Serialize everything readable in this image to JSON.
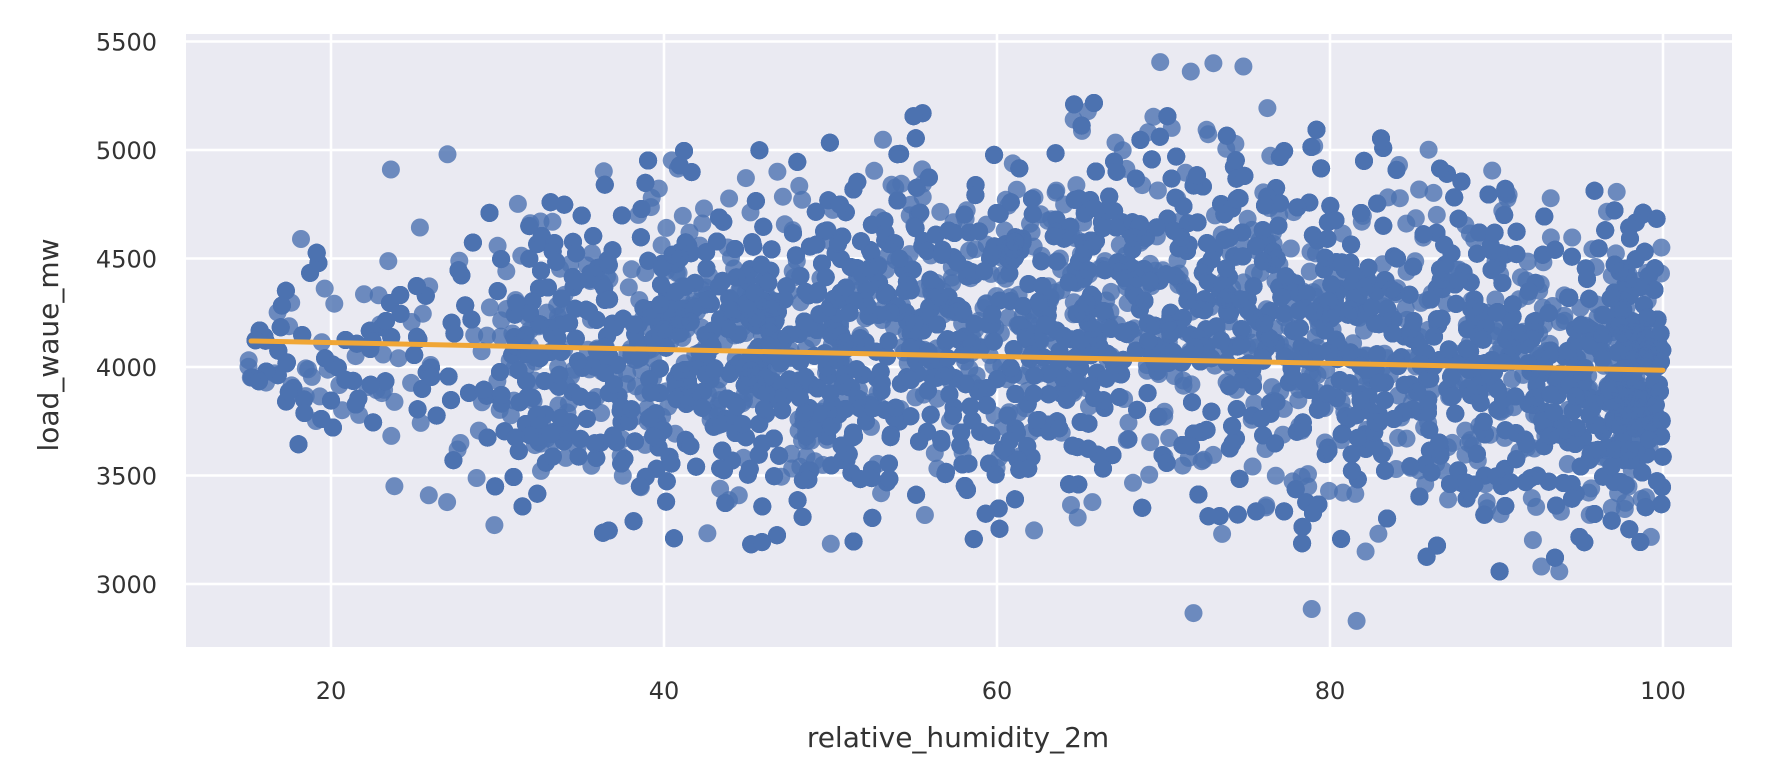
{
  "chart_data": {
    "type": "scatter",
    "title": "",
    "xlabel": "relative_humidity_2m",
    "ylabel": "load_waue_mw",
    "xlim": [
      11.5,
      104.3
    ],
    "ylim": [
      2720,
      5530
    ],
    "xticks": [
      20,
      40,
      60,
      80,
      100
    ],
    "xtick_labels": [
      "20",
      "40",
      "60",
      "80",
      "100"
    ],
    "yticks": [
      3000,
      3500,
      4000,
      4500,
      5000,
      5500
    ],
    "ytick_labels": [
      "3000",
      "3500",
      "4000",
      "4500",
      "5000",
      "5500"
    ],
    "grid": true,
    "legend": null,
    "style": "seaborn darkgrid",
    "series": [
      {
        "name": "observations",
        "kind": "scatter",
        "color": "#4c72b0",
        "alpha": 0.8,
        "marker_radius_px": 9,
        "x_range": [
          15,
          100
        ],
        "y_range": [
          2830,
          5410
        ],
        "approx_n": "many thousands (dense cloud)",
        "envelope": [
          {
            "x": 15,
            "y_low": 3850,
            "y_high": 4300
          },
          {
            "x": 20,
            "y_low": 3500,
            "y_high": 4600
          },
          {
            "x": 25,
            "y_low": 3350,
            "y_high": 4750
          },
          {
            "x": 30,
            "y_low": 3250,
            "y_high": 4850
          },
          {
            "x": 35,
            "y_low": 3200,
            "y_high": 4950
          },
          {
            "x": 40,
            "y_low": 3150,
            "y_high": 5000
          },
          {
            "x": 45,
            "y_low": 3150,
            "y_high": 5050
          },
          {
            "x": 50,
            "y_low": 3150,
            "y_high": 5100
          },
          {
            "x": 55,
            "y_low": 3150,
            "y_high": 5200
          },
          {
            "x": 60,
            "y_low": 3150,
            "y_high": 5150
          },
          {
            "x": 65,
            "y_low": 3150,
            "y_high": 5250
          },
          {
            "x": 70,
            "y_low": 3150,
            "y_high": 5400
          },
          {
            "x": 75,
            "y_low": 3150,
            "y_high": 5380
          },
          {
            "x": 80,
            "y_low": 3100,
            "y_high": 5100
          },
          {
            "x": 85,
            "y_low": 3100,
            "y_high": 5050
          },
          {
            "x": 90,
            "y_low": 3050,
            "y_high": 5000
          },
          {
            "x": 95,
            "y_low": 3050,
            "y_high": 4850
          },
          {
            "x": 100,
            "y_low": 3200,
            "y_high": 4850
          }
        ],
        "notable_points": [
          {
            "x": 71.8,
            "y": 2866
          },
          {
            "x": 78.9,
            "y": 2885
          },
          {
            "x": 81.6,
            "y": 2830
          },
          {
            "x": 69.8,
            "y": 5405
          },
          {
            "x": 73.0,
            "y": 5400
          },
          {
            "x": 74.8,
            "y": 5385
          },
          {
            "x": 18.2,
            "y": 4590
          },
          {
            "x": 23.6,
            "y": 4910
          },
          {
            "x": 27.0,
            "y": 4980
          }
        ]
      },
      {
        "name": "regression line",
        "kind": "line",
        "color": "#f0a636",
        "x": [
          15.2,
          100
        ],
        "y": [
          4120,
          3985
        ]
      }
    ]
  }
}
